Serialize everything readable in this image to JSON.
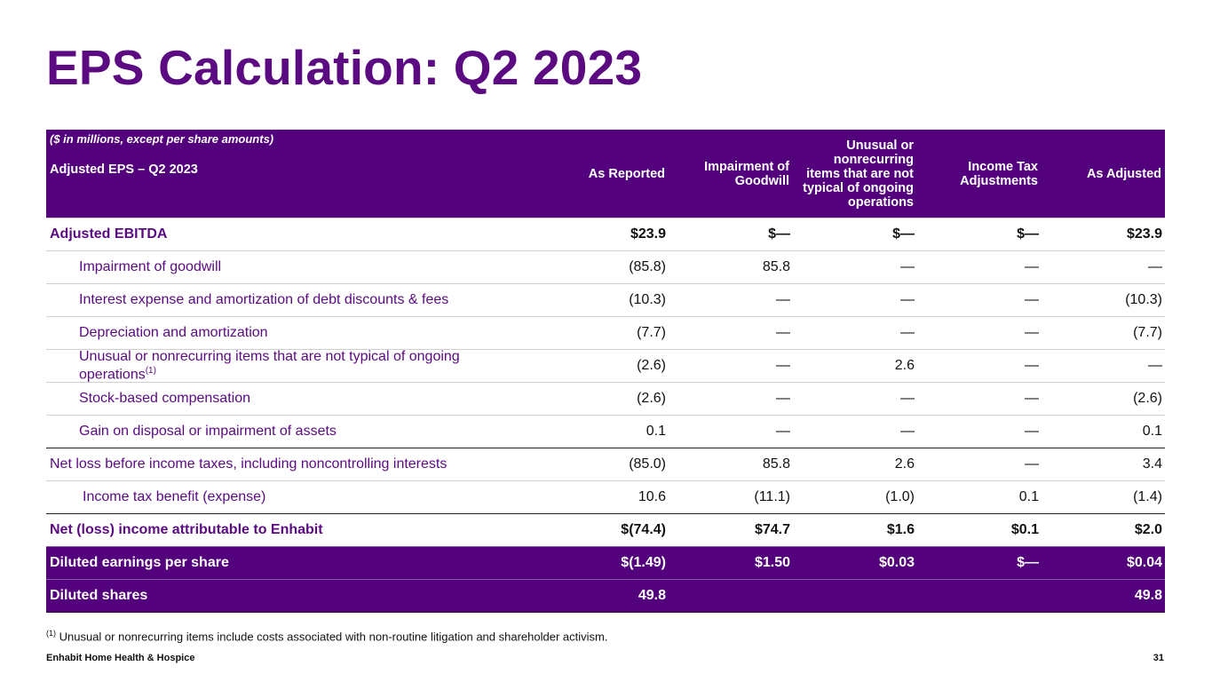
{
  "title": "EPS Calculation: Q2 2023",
  "table": {
    "units_note": "($ in millions, except per share amounts)",
    "subheader": "Adjusted EPS – Q2 2023",
    "columns": [
      "As Reported",
      "Impairment of Goodwill",
      "Unusual or nonrecurring items that are not typical of ongoing operations",
      "Income Tax Adjustments",
      "As Adjusted"
    ],
    "rows": [
      {
        "label": "Adjusted EBITDA",
        "values": [
          "$23.9",
          "$—",
          "$—",
          "$—",
          "$23.9"
        ]
      },
      {
        "label": "Impairment of goodwill",
        "values": [
          "(85.8)",
          "85.8",
          "—",
          "—",
          "—"
        ]
      },
      {
        "label": "Interest expense and amortization of debt discounts & fees",
        "values": [
          "(10.3)",
          "—",
          "—",
          "—",
          "(10.3)"
        ]
      },
      {
        "label": "Depreciation and amortization",
        "values": [
          "(7.7)",
          "—",
          "—",
          "—",
          "(7.7)"
        ]
      },
      {
        "label": "Unusual or nonrecurring items that are not typical of ongoing operations",
        "footnote_ref": "(1)",
        "values": [
          "(2.6)",
          "—",
          "2.6",
          "—",
          "—"
        ]
      },
      {
        "label": "Stock-based compensation",
        "values": [
          "(2.6)",
          "—",
          "—",
          "—",
          "(2.6)"
        ]
      },
      {
        "label": "Gain on disposal or impairment of assets",
        "values": [
          "0.1",
          "—",
          "—",
          "—",
          "0.1"
        ]
      },
      {
        "label": "Net loss before income taxes, including noncontrolling interests",
        "values": [
          "(85.0)",
          "85.8",
          "2.6",
          "—",
          "3.4"
        ]
      },
      {
        "label": "Income tax benefit (expense)",
        "values": [
          "10.6",
          "(11.1)",
          "(1.0)",
          "0.1",
          "(1.4)"
        ]
      },
      {
        "label": "Net (loss) income attributable to Enhabit",
        "values": [
          "$(74.4)",
          "$74.7",
          "$1.6",
          "$0.1",
          "$2.0"
        ]
      },
      {
        "label": "Diluted earnings per share",
        "values": [
          "$(1.49)",
          "$1.50",
          "$0.03",
          "$—",
          "$0.04"
        ]
      },
      {
        "label": "Diluted shares",
        "values": [
          "49.8",
          "",
          "",
          "",
          "49.8"
        ]
      }
    ]
  },
  "footnote": {
    "marker": "(1)",
    "text": "Unusual or nonrecurring items include costs associated with non-routine litigation and shareholder activism."
  },
  "footer": {
    "company": "Enhabit Home Health & Hospice",
    "page_number": "31"
  },
  "colors": {
    "brand_purple": "#53007d",
    "title_purple": "#5b0a82"
  }
}
